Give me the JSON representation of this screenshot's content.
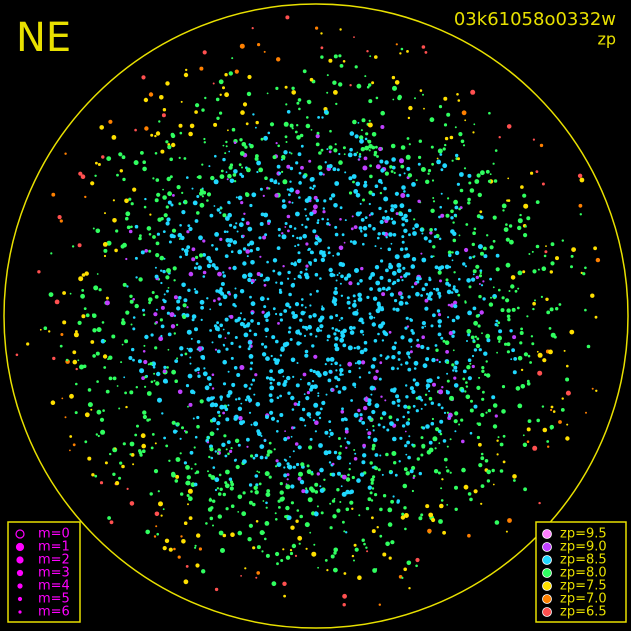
{
  "corner_label": "NE",
  "image_id": "03k61058o0332w",
  "mode": "zp",
  "magnitude_legend": {
    "color": "#ff00ff",
    "items": [
      "m=0",
      "m=1",
      "m=2",
      "m=3",
      "m=4",
      "m=5",
      "m=6"
    ]
  },
  "zp_legend": {
    "items": [
      {
        "label": "zp=9.5",
        "color": "#ff80ff"
      },
      {
        "label": "zp=9.0",
        "color": "#c040ff"
      },
      {
        "label": "zp=8.5",
        "color": "#20d8ff"
      },
      {
        "label": "zp=8.0",
        "color": "#30ff60"
      },
      {
        "label": "zp=7.5",
        "color": "#ffe000"
      },
      {
        "label": "zp=7.0",
        "color": "#ff8000"
      },
      {
        "label": "zp=6.5",
        "color": "#ff5050"
      }
    ]
  }
}
